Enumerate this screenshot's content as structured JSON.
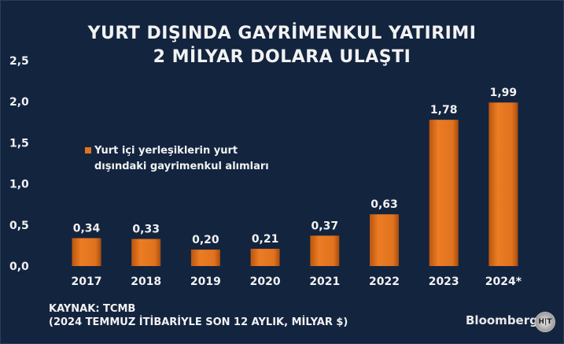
{
  "title_lines": [
    "YURT DIŞINDA GAYRİMENKUL YATIRIMI",
    "2 MİLYAR DOLARA ULAŞTI"
  ],
  "chart_data": {
    "type": "bar",
    "title": "YURT DIŞINDA GAYRİMENKUL YATIRIMI 2 MİLYAR DOLARA ULAŞTI",
    "categories": [
      "2017",
      "2018",
      "2019",
      "2020",
      "2021",
      "2022",
      "2023",
      "2024*"
    ],
    "series": [
      {
        "name": "Yurt içi yerleşiklerin yurt dışındaki gayrimenkul alımları",
        "values": [
          0.34,
          0.33,
          0.2,
          0.21,
          0.37,
          0.63,
          1.78,
          1.99
        ]
      }
    ],
    "data_labels": [
      "0,34",
      "0,33",
      "0,20",
      "0,21",
      "0,37",
      "0,63",
      "1,78",
      "1,99"
    ],
    "yticks": [
      "0,0",
      "0,5",
      "1,0",
      "1,5",
      "2,0",
      "2,5"
    ],
    "ylim": [
      0,
      2.5
    ],
    "grid": false,
    "legend_lines": [
      "Yurt içi yerleşiklerin yurt",
      "dışındaki gayrimenkul alımları"
    ],
    "legend_position": "center-left",
    "colors": {
      "background": "#13243f",
      "bar": "#e0731f",
      "text": "#f2f2f2"
    }
  },
  "source_lines": [
    "KAYNAK: TCMB",
    "(2024 TEMMUZ İTİBARİYLE SON 12 AYLIK, MİLYAR $)"
  ],
  "brand": {
    "logo": "Bloomberg",
    "badge": "HT"
  }
}
